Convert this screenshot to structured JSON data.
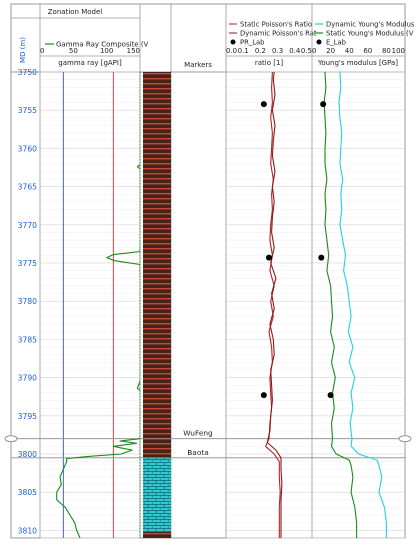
{
  "chart_data": {
    "type": "line",
    "depth_axis": {
      "label": "MD (m)",
      "range": [
        3750,
        3811
      ],
      "ticks": [
        3750,
        3755,
        3760,
        3765,
        3770,
        3775,
        3780,
        3785,
        3790,
        3795,
        3800,
        3805,
        3810
      ],
      "tick_labels": [
        "3750",
        "3755",
        "3760",
        "3765",
        "3770",
        "3775",
        "3780",
        "3785",
        "3790",
        "3795",
        "3800",
        "3805",
        "3810"
      ],
      "color": "#1c5fd1"
    },
    "tracks": {
      "gamma": {
        "header_title": "Zonation Model",
        "legend": [
          {
            "name": "Gamma Ray Composite (V",
            "color": "#1a8a1a"
          }
        ],
        "unit_label": "gamma ray [gAPI]",
        "range": [
          0,
          150
        ],
        "tick_labels": [
          "0",
          "50",
          "100",
          "150"
        ],
        "cutoffs": [
          {
            "value": 35,
            "color": "#3050e0"
          },
          {
            "value": 110,
            "color": "#d03030"
          }
        ],
        "series": [
          {
            "name": "Gamma Ray Composite",
            "color": "#1a8a1a",
            "depth": [
              3750,
              3755,
              3760,
              3762,
              3762.4,
              3762.8,
              3765,
              3770,
              3773.5,
              3773.9,
              3774.3,
              3774.7,
              3775.2,
              3780,
              3785,
              3790,
              3791.4,
              3791.8,
              3795,
              3797,
              3798,
              3798.3,
              3798.6,
              3799,
              3799.5,
              3800,
              3800.3,
              3800.6,
              3801,
              3802,
              3803,
              3804,
              3805,
              3806,
              3807,
              3808,
              3809,
              3810,
              3811
            ],
            "values": [
              152,
              152,
              152,
              152,
              146,
              152,
              152,
              152,
              150,
              110,
              100,
              112,
              150,
              152,
              152,
              152,
              146,
              152,
              152,
              152,
              150,
              120,
              145,
              110,
              138,
              122,
              75,
              40,
              40,
              35,
              30,
              32,
              25,
              25,
              38,
              45,
              52,
              55,
              60
            ]
          }
        ]
      },
      "lithology": {
        "upper_color": "#4a2318",
        "upper_stripe": "#c24a3a",
        "lower_color": "#33c6cf",
        "lower_stripe": "#0d6c78",
        "boundary_depth": 3800.5
      },
      "markers": {
        "header": "Markers",
        "items": [
          {
            "name": "WuFeng",
            "depth": 3798
          },
          {
            "name": "Baota",
            "depth": 3800.5
          }
        ]
      },
      "poisson": {
        "legend": [
          {
            "name": "Static Poisson's Ratio",
            "color": "#b22222",
            "style": "line"
          },
          {
            "name": "Dynamic Poisson's Rat",
            "color": "#8b1a1a",
            "style": "line"
          },
          {
            "name": "PR_Lab",
            "color": "#000000",
            "style": "dot"
          }
        ],
        "unit_label": "ratio [1]",
        "range": [
          0,
          0.5
        ],
        "tick_labels": [
          "0.0",
          "0.1",
          "0.2",
          "0.3",
          "0.4",
          "0.5"
        ],
        "series": [
          {
            "name": "Static Poisson's Ratio",
            "color": "#b22222",
            "depth": [
              3750,
              3752,
              3754,
              3756,
              3758,
              3760,
              3762,
              3764,
              3766,
              3768,
              3770,
              3772,
              3774,
              3776,
              3778,
              3780,
              3782,
              3784,
              3786,
              3788,
              3790,
              3792,
              3794,
              3796,
              3798,
              3799,
              3800,
              3801,
              3803,
              3805,
              3807,
              3809,
              3811
            ],
            "values": [
              0.27,
              0.265,
              0.27,
              0.26,
              0.27,
              0.265,
              0.26,
              0.275,
              0.265,
              0.27,
              0.26,
              0.255,
              0.27,
              0.255,
              0.28,
              0.26,
              0.275,
              0.25,
              0.265,
              0.27,
              0.255,
              0.26,
              0.265,
              0.255,
              0.25,
              0.23,
              0.28,
              0.31,
              0.31,
              0.315,
              0.31,
              0.31,
              0.31
            ]
          },
          {
            "name": "Dynamic Poisson's Ratio",
            "color": "#8b1a1a",
            "depth": [
              3750,
              3751,
              3753,
              3755,
              3757,
              3759,
              3761,
              3763,
              3765,
              3767,
              3769,
              3771,
              3773,
              3775,
              3777,
              3779,
              3781,
              3783,
              3785,
              3787,
              3789,
              3791,
              3793,
              3795,
              3797,
              3798.5,
              3799.5,
              3800.5,
              3802,
              3804,
              3806,
              3808,
              3810,
              3811
            ],
            "values": [
              0.28,
              0.275,
              0.285,
              0.27,
              0.285,
              0.275,
              0.27,
              0.285,
              0.27,
              0.28,
              0.27,
              0.265,
              0.28,
              0.26,
              0.29,
              0.265,
              0.28,
              0.255,
              0.275,
              0.28,
              0.26,
              0.265,
              0.27,
              0.26,
              0.255,
              0.24,
              0.29,
              0.32,
              0.32,
              0.325,
              0.32,
              0.32,
              0.32,
              0.32
            ]
          }
        ],
        "lab_points": {
          "name": "PR_Lab",
          "color": "#000000",
          "depth": [
            3754.2,
            3774.3,
            3792.3
          ],
          "values": [
            0.22,
            0.25,
            0.22
          ]
        }
      },
      "youngs": {
        "legend": [
          {
            "name": "Dynamic Young's Modulus",
            "color": "#1fd3e0",
            "style": "line"
          },
          {
            "name": "Static Young's Modulus (V",
            "color": "#1a8a1a",
            "style": "line"
          },
          {
            "name": "E_Lab",
            "color": "#000000",
            "style": "dot"
          }
        ],
        "unit_label": "Young's modulus [GPa]",
        "range": [
          0,
          100
        ],
        "tick_labels": [
          "0",
          "20",
          "40",
          "60",
          "80",
          "100"
        ],
        "series": [
          {
            "name": "Dynamic Young's Modulus",
            "color": "#1fd3e0",
            "depth": [
              3750,
              3752,
              3754,
              3756,
              3758,
              3760,
              3762,
              3764,
              3766,
              3768,
              3770,
              3772,
              3774,
              3776,
              3778,
              3780,
              3782,
              3784,
              3786,
              3788,
              3790,
              3792,
              3794,
              3796,
              3798,
              3799,
              3800,
              3800.8,
              3801.5,
              3803,
              3805,
              3807,
              3809,
              3811
            ],
            "values": [
              30,
              31,
              29,
              30,
              32,
              31,
              30,
              33,
              31,
              32,
              30,
              33,
              36,
              34,
              38,
              40,
              42,
              39,
              44,
              40,
              46,
              42,
              44,
              41,
              43,
              42,
              50,
              70,
              72,
              75,
              72,
              78,
              80,
              80
            ]
          },
          {
            "name": "Static Young's Modulus",
            "color": "#1a8a1a",
            "depth": [
              3750,
              3752,
              3754,
              3756,
              3758,
              3760,
              3762,
              3764,
              3766,
              3768,
              3770,
              3772,
              3774,
              3776,
              3778,
              3780,
              3782,
              3784,
              3786,
              3788,
              3790,
              3792,
              3794,
              3796,
              3798,
              3799,
              3800,
              3800.8,
              3801.5,
              3803,
              3805,
              3807,
              3809,
              3811
            ],
            "values": [
              14,
              15,
              13,
              14,
              15,
              14,
              14,
              16,
              14,
              15,
              14,
              16,
              18,
              16,
              20,
              21,
              22,
              20,
              24,
              21,
              25,
              22,
              24,
              21,
              22,
              21,
              26,
              40,
              42,
              44,
              42,
              46,
              48,
              48
            ]
          }
        ],
        "lab_points": {
          "name": "E_Lab",
          "color": "#000000",
          "depth": [
            3754.2,
            3774.3,
            3792.3
          ],
          "values": [
            12,
            10,
            20
          ]
        }
      }
    }
  }
}
